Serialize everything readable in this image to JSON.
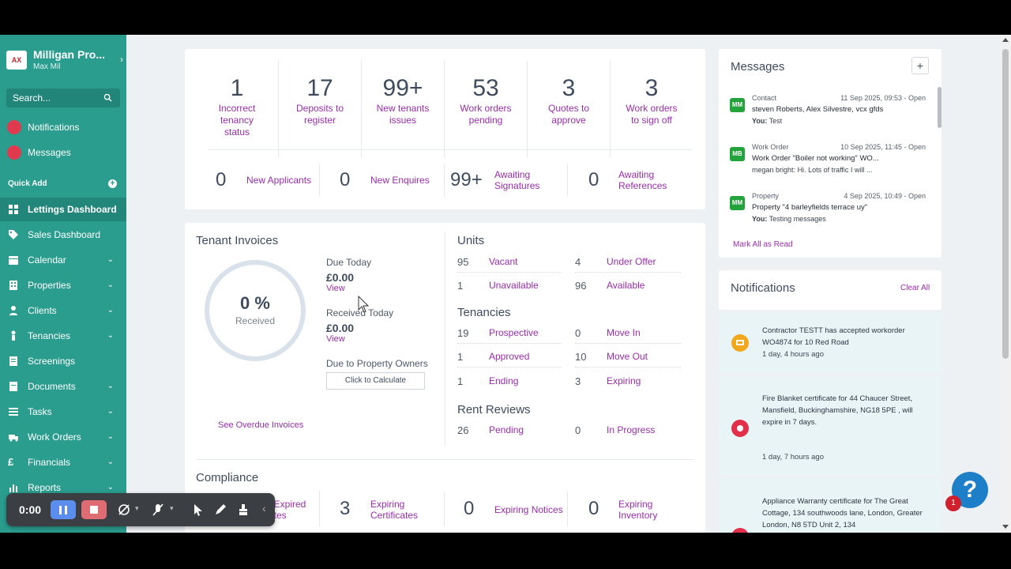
{
  "app": {
    "brand_name": "Milligan Pro...",
    "brand_sub": "Max Mil",
    "logo_text": "AX"
  },
  "search": {
    "placeholder": "Search..."
  },
  "sidebar": {
    "top_items": [
      {
        "label": "Notifications"
      },
      {
        "label": "Messages"
      }
    ],
    "quick_add": "Quick Add",
    "items": [
      {
        "label": "Lettings Dashboard",
        "icon": "grid-icon",
        "active": true
      },
      {
        "label": "Sales Dashboard",
        "icon": "tag-icon"
      },
      {
        "label": "Calendar",
        "icon": "calendar-icon"
      },
      {
        "label": "Properties",
        "icon": "building-icon"
      },
      {
        "label": "Clients",
        "icon": "person-icon"
      },
      {
        "label": "Tenancies",
        "icon": "person-icon"
      },
      {
        "label": "Screenings",
        "icon": "document-icon"
      },
      {
        "label": "Documents",
        "icon": "folder-icon"
      },
      {
        "label": "Tasks",
        "icon": "list-icon"
      },
      {
        "label": "Work Orders",
        "icon": "truck-icon"
      },
      {
        "label": "Financials",
        "icon": "pound-icon"
      },
      {
        "label": "Reports",
        "icon": "bar-chart-icon"
      }
    ]
  },
  "kpis": [
    {
      "value": "1",
      "label": "Incorrect tenancy status"
    },
    {
      "value": "17",
      "label": "Deposits to register"
    },
    {
      "value": "99+",
      "label": "New tenants issues"
    },
    {
      "value": "53",
      "label": "Work orders pending"
    },
    {
      "value": "3",
      "label": "Quotes to approve"
    },
    {
      "value": "3",
      "label": "Work orders to sign off"
    }
  ],
  "kpi_row2": [
    {
      "value": "0",
      "label": "New Applicants"
    },
    {
      "value": "0",
      "label": "New Enquires"
    },
    {
      "value": "99+",
      "label": "Awaiting Signatures"
    },
    {
      "value": "0",
      "label": "Awaiting References"
    }
  ],
  "tenant_invoices": {
    "title": "Tenant Invoices",
    "percent": "0 %",
    "percent_label": "Received",
    "received_fraction": 0,
    "due_today_label": "Due Today",
    "due_today_value": "£0.00",
    "view_label": "View",
    "received_today_label": "Received Today",
    "received_today_value": "£0.00",
    "due_owners_label": "Due to Property Owners",
    "calculate_label": "Click to Calculate",
    "overdue_link": "See Overdue Invoices"
  },
  "units": {
    "title": "Units",
    "rows": [
      {
        "value": "95",
        "label": "Vacant"
      },
      {
        "value": "4",
        "label": "Under Offer"
      },
      {
        "value": "1",
        "label": "Unavailable"
      },
      {
        "value": "96",
        "label": "Available"
      }
    ]
  },
  "tenancies": {
    "title": "Tenancies",
    "rows": [
      {
        "value": "19",
        "label": "Prospective"
      },
      {
        "value": "0",
        "label": "Move In"
      },
      {
        "value": "1",
        "label": "Approved"
      },
      {
        "value": "10",
        "label": "Move Out"
      },
      {
        "value": "1",
        "label": "Ending"
      },
      {
        "value": "3",
        "label": "Expiring"
      }
    ]
  },
  "rent_reviews": {
    "title": "Rent Reviews",
    "rows": [
      {
        "value": "26",
        "label": "Pending"
      },
      {
        "value": "0",
        "label": "In Progress"
      }
    ]
  },
  "compliance": {
    "title": "Compliance",
    "items": [
      {
        "value": "",
        "label": "/ Expired",
        "label2": "ates"
      },
      {
        "value": "3",
        "label": "Expiring Certificates"
      },
      {
        "value": "0",
        "label": "Expiring Notices"
      },
      {
        "value": "0",
        "label": "Expiring Inventory"
      }
    ]
  },
  "messages": {
    "title": "Messages",
    "add_label": "+",
    "mark_all": "Mark All as Read",
    "items": [
      {
        "avatar": "MM",
        "type": "Contact",
        "time": "11 Sep 2025, 09:53 - Open",
        "subject": "steven Roberts, Alex Silvestre, vcx gfds",
        "sender": "You:",
        "text": "Test"
      },
      {
        "avatar": "MB",
        "type": "Work Order",
        "time": "10 Sep 2025, 11:45 - Open",
        "subject": "Work Order \"Boiler not working\" WO...",
        "sender": "megan bright:",
        "text": "Hi. Lots of traffic I will ..."
      },
      {
        "avatar": "MM",
        "type": "Property",
        "time": "4 Sep 2025, 10:49 - Open",
        "subject": "Property \"4 barleyfields terrace uy\"",
        "sender": "You:",
        "text": "Testing messages"
      }
    ]
  },
  "notifications": {
    "title": "Notifications",
    "clear_all": "Clear All",
    "items": [
      {
        "text": "Contractor TESTT has accepted workorder WO4874 for 10 Red Road",
        "time": "1 day, 4 hours ago",
        "color": "#f0a81c"
      },
      {
        "text": "Fire Blanket certificate for 44 Chaucer Street, Mansfield, Buckinghamshire, NG18 5PE , will expire in 7 days.",
        "time": "1 day, 7 hours ago",
        "color": "#e2304a"
      },
      {
        "text": "Appliance Warranty certificate for The Great Cottage, 134 southwoods lane, London, Greater London, N8 5TD Unit 2, 134",
        "time": "",
        "color": "#e2304a"
      }
    ]
  },
  "recorder": {
    "time": "0:00"
  },
  "help": {
    "label": "?",
    "badge": "1"
  },
  "colors": {
    "sidebar": "#2a9d8f",
    "accent": "#9b2cad",
    "help": "#1e7fc9"
  }
}
